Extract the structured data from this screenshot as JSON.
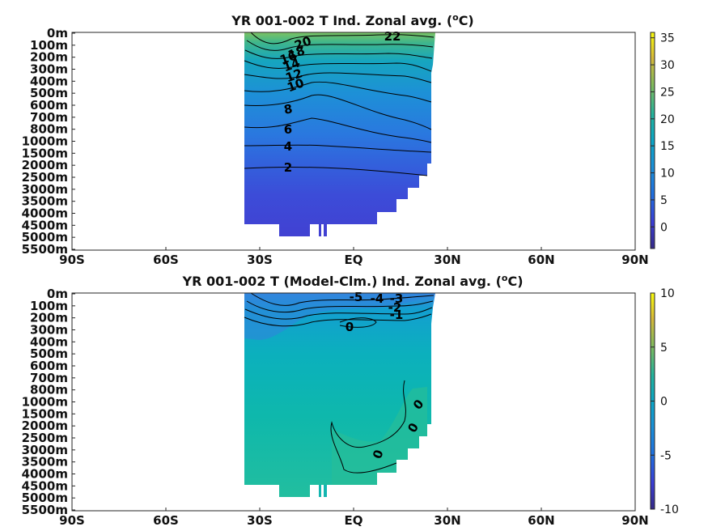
{
  "chart_data": [
    {
      "type": "heatmap",
      "title": "YR 001-002 T Ind. Zonal avg. (",
      "title_unit": "C)",
      "title_sup": "o",
      "x_ticks": [
        "90S",
        "60S",
        "30S",
        "EQ",
        "30N",
        "60N",
        "90N"
      ],
      "xlim": [
        -90,
        90
      ],
      "y_ticks": [
        "0m",
        "100m",
        "200m",
        "300m",
        "400m",
        "500m",
        "600m",
        "700m",
        "800m",
        "1000m",
        "1500m",
        "2000m",
        "2500m",
        "3000m",
        "3500m",
        "4000m",
        "4500m",
        "5000m",
        "5500m"
      ],
      "colorbar": {
        "ticks": [
          "35",
          "30",
          "25",
          "20",
          "15",
          "10",
          "5",
          "0"
        ],
        "range": [
          -4,
          36
        ],
        "colormap": "parula"
      },
      "data_extent_lat": [
        -35,
        25
      ],
      "contour_labels": [
        "22",
        "20",
        "18",
        "16",
        "14",
        "12",
        "10",
        "8",
        "6",
        "4",
        "2"
      ],
      "profile_depth_index": [
        0,
        1,
        2,
        3,
        4,
        5,
        6,
        7,
        8,
        9,
        10,
        11,
        12,
        13,
        14,
        15,
        16,
        17
      ],
      "profile_temperature": [
        22,
        19,
        16,
        14,
        12,
        10,
        9,
        8,
        7,
        5.5,
        4,
        2.5,
        1.8,
        1.3,
        1.0,
        0.8,
        0.6,
        0.5
      ]
    },
    {
      "type": "heatmap",
      "title": "YR 001-002 T (Model-Clm.) Ind. Zonal avg. (",
      "title_unit": "C)",
      "title_sup": "o",
      "x_ticks": [
        "90S",
        "60S",
        "30S",
        "EQ",
        "30N",
        "60N",
        "90N"
      ],
      "xlim": [
        -90,
        90
      ],
      "y_ticks": [
        "0m",
        "100m",
        "200m",
        "300m",
        "400m",
        "500m",
        "600m",
        "700m",
        "800m",
        "1000m",
        "1500m",
        "2000m",
        "2500m",
        "3000m",
        "3500m",
        "4000m",
        "4500m",
        "5000m",
        "5500m"
      ],
      "colorbar": {
        "ticks": [
          "10",
          "5",
          "0",
          "-5",
          "-10"
        ],
        "range": [
          -10,
          10
        ],
        "colormap": "parula"
      },
      "data_extent_lat": [
        -35,
        25
      ],
      "contour_labels": [
        "-5",
        "-4",
        "-3",
        "-2",
        "-1",
        "0",
        "0",
        "0",
        "0"
      ]
    }
  ],
  "colors": {
    "frame": "#262626",
    "missing": "#ffffff",
    "contour": "#000000"
  }
}
